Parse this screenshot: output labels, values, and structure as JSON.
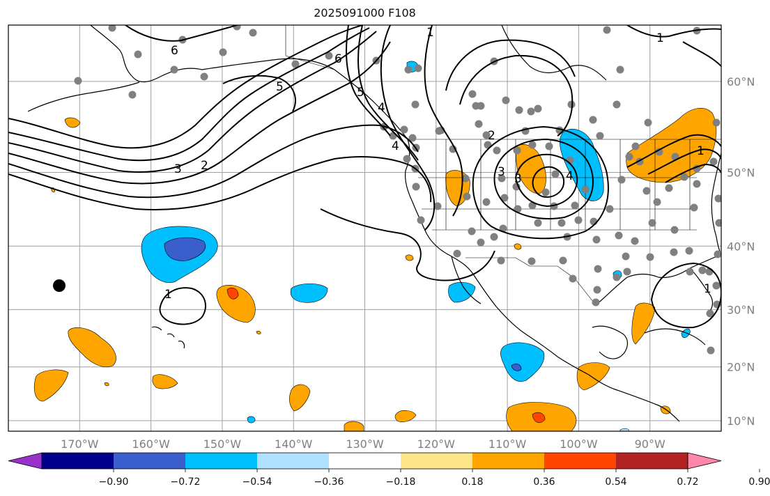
{
  "title": "2025091000 F108",
  "map": {
    "projection": "mercator",
    "lon_range": [
      -180,
      -80
    ],
    "lat_range": [
      8,
      65
    ],
    "lon_ticks": [
      {
        "lon": -170,
        "label": "170°W"
      },
      {
        "lon": -160,
        "label": "160°W"
      },
      {
        "lon": -150,
        "label": "150°W"
      },
      {
        "lon": -140,
        "label": "140°W"
      },
      {
        "lon": -130,
        "label": "130°W"
      },
      {
        "lon": -120,
        "label": "120°W"
      },
      {
        "lon": -110,
        "label": "110°W"
      },
      {
        "lon": -100,
        "label": "100°W"
      },
      {
        "lon": -90,
        "label": "90°W"
      }
    ],
    "lat_ticks": [
      {
        "lat": 10,
        "label": "10°N"
      },
      {
        "lat": 20,
        "label": "20°N"
      },
      {
        "lat": 30,
        "label": "30°N"
      },
      {
        "lat": 40,
        "label": "40°N"
      },
      {
        "lat": 50,
        "label": "50°N"
      },
      {
        "lat": 60,
        "label": "60°N"
      }
    ],
    "contour_labels": [
      "6",
      "5",
      "4",
      "3",
      "2",
      "1",
      "6",
      "5",
      "4",
      "3",
      "4",
      "3",
      "2",
      "1",
      "1",
      "1",
      "1"
    ],
    "colorbar": {
      "colors": [
        "#9932cc",
        "#00008b",
        "#3a5fcd",
        "#00bfff",
        "#b0e2ff",
        "#ffffff",
        "#fde68a",
        "#ffa500",
        "#ff4500",
        "#b22222",
        "#ff88aa"
      ],
      "tick_labels": [
        "−0.90",
        "−0.72",
        "−0.54",
        "−0.36",
        "−0.18",
        "0.18",
        "0.36",
        "0.54",
        "0.72",
        "0.90"
      ]
    }
  }
}
